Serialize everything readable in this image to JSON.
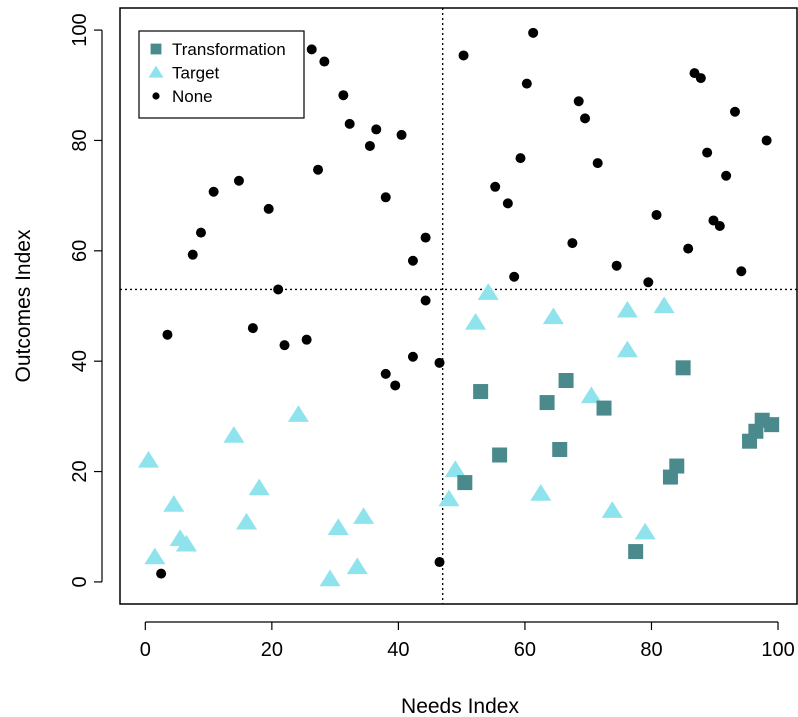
{
  "chart_data": {
    "type": "scatter",
    "xlabel": "Needs Index",
    "ylabel": "Outcomes Index",
    "xlim": [
      -4,
      103
    ],
    "ylim": [
      -4,
      104
    ],
    "xticks": [
      0,
      20,
      40,
      60,
      80,
      100
    ],
    "yticks": [
      0,
      20,
      40,
      60,
      80,
      100
    ],
    "reference_lines": {
      "vertical_x": 47,
      "horizontal_y": 53
    },
    "legend_position": "top-left",
    "series": [
      {
        "name": "Transformation",
        "marker": "square",
        "color": "#4a8a8c",
        "points": [
          [
            53,
            34.5
          ],
          [
            56,
            23
          ],
          [
            50.5,
            18
          ],
          [
            63.5,
            32.5
          ],
          [
            65.5,
            24
          ],
          [
            66.5,
            36.5
          ],
          [
            72.5,
            31.5
          ],
          [
            77.5,
            5.5
          ],
          [
            83,
            19
          ],
          [
            84,
            21
          ],
          [
            85,
            38.8
          ],
          [
            95.5,
            25.5
          ],
          [
            96.5,
            27.3
          ],
          [
            97.5,
            29.3
          ],
          [
            99,
            28.5
          ]
        ]
      },
      {
        "name": "Target",
        "marker": "triangle",
        "color": "#8ee3ec",
        "points": [
          [
            0.5,
            22
          ],
          [
            1.5,
            4.5
          ],
          [
            4.5,
            14
          ],
          [
            5.5,
            7.8
          ],
          [
            6.5,
            6.8
          ],
          [
            14,
            26.5
          ],
          [
            16,
            10.8
          ],
          [
            18,
            17
          ],
          [
            24.2,
            30.3
          ],
          [
            29.2,
            0.5
          ],
          [
            30.5,
            9.8
          ],
          [
            33.5,
            2.7
          ],
          [
            34.5,
            11.8
          ],
          [
            48,
            15
          ],
          [
            49,
            20.3
          ],
          [
            52.2,
            47
          ],
          [
            54.2,
            52.4
          ],
          [
            62.5,
            16
          ],
          [
            64.5,
            48
          ],
          [
            70.5,
            33.7
          ],
          [
            73.8,
            12.9
          ],
          [
            76.2,
            49.2
          ],
          [
            76.2,
            42
          ],
          [
            79,
            9
          ],
          [
            82,
            50
          ]
        ]
      },
      {
        "name": "None",
        "marker": "circle",
        "color": "#000000",
        "points": [
          [
            2.5,
            1.5
          ],
          [
            3.5,
            44.8
          ],
          [
            7.5,
            59.3
          ],
          [
            8.8,
            63.3
          ],
          [
            10.8,
            70.7
          ],
          [
            14.8,
            72.7
          ],
          [
            17,
            46
          ],
          [
            19.5,
            67.6
          ],
          [
            21,
            53
          ],
          [
            22,
            42.9
          ],
          [
            25.5,
            43.9
          ],
          [
            26.3,
            96.5
          ],
          [
            27.3,
            74.7
          ],
          [
            28.3,
            94.3
          ],
          [
            31.3,
            88.2
          ],
          [
            32.3,
            83
          ],
          [
            35.5,
            79
          ],
          [
            36.5,
            82
          ],
          [
            38,
            69.7
          ],
          [
            38,
            37.7
          ],
          [
            39.5,
            35.6
          ],
          [
            40.5,
            81
          ],
          [
            42.3,
            58.2
          ],
          [
            42.3,
            40.8
          ],
          [
            44.3,
            62.4
          ],
          [
            44.3,
            51
          ],
          [
            46.5,
            39.7
          ],
          [
            46.5,
            3.6
          ],
          [
            50.3,
            95.4
          ],
          [
            55.3,
            71.6
          ],
          [
            57.3,
            68.6
          ],
          [
            58.3,
            55.3
          ],
          [
            59.3,
            76.8
          ],
          [
            60.3,
            90.3
          ],
          [
            61.3,
            99.5
          ],
          [
            67.5,
            61.4
          ],
          [
            68.5,
            87.1
          ],
          [
            69.5,
            84
          ],
          [
            71.5,
            75.9
          ],
          [
            74.5,
            57.3
          ],
          [
            79.5,
            54.3
          ],
          [
            80.8,
            66.5
          ],
          [
            85.8,
            60.4
          ],
          [
            86.8,
            92.2
          ],
          [
            87.8,
            91.3
          ],
          [
            88.8,
            77.8
          ],
          [
            89.8,
            65.5
          ],
          [
            90.8,
            64.5
          ],
          [
            91.8,
            73.6
          ],
          [
            93.2,
            85.2
          ],
          [
            94.2,
            56.3
          ],
          [
            98.2,
            80
          ]
        ]
      }
    ]
  }
}
